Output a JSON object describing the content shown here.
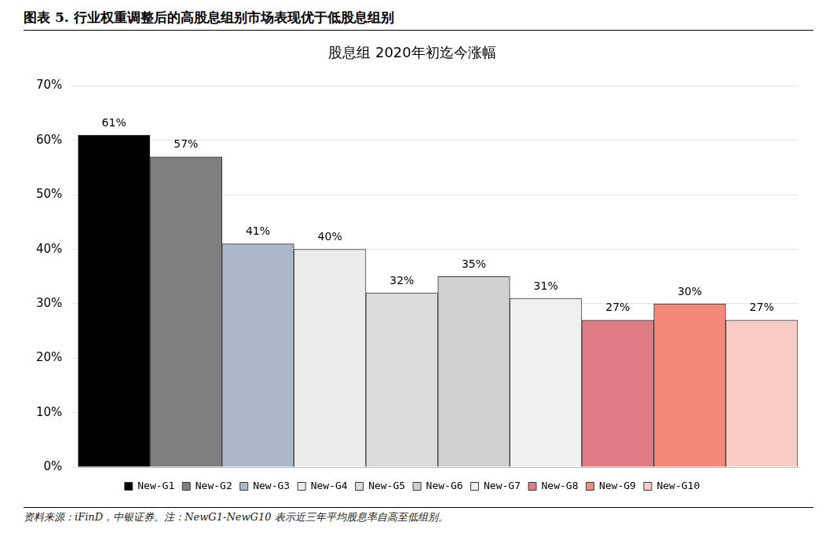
{
  "figure_title": "图表 5. 行业权重调整后的高股息组别市场表现优于低股息组别",
  "source_note": "资料来源：iFinD，中银证券。注：NewG1-NewG10 表示近三年平均股息率自高至低组别。",
  "chart_data": {
    "type": "bar",
    "title": "股息组 2020年初迄今涨幅",
    "categories": [
      "New-G1",
      "New-G2",
      "New-G3",
      "New-G4",
      "New-G5",
      "New-G6",
      "New-G7",
      "New-G8",
      "New-G9",
      "New-G10"
    ],
    "values": [
      61,
      57,
      41,
      40,
      32,
      35,
      31,
      27,
      30,
      27
    ],
    "value_labels": [
      "61%",
      "57%",
      "41%",
      "40%",
      "32%",
      "35%",
      "31%",
      "27%",
      "30%",
      "27%"
    ],
    "colors": [
      "#000000",
      "#7f7f7f",
      "#adb9ca",
      "#ececec",
      "#dcdcdc",
      "#d0d0d0",
      "#f0f0f0",
      "#df7b82",
      "#f2897a",
      "#f8cbc5"
    ],
    "ylim": [
      0,
      70
    ],
    "yticks": [
      {
        "value": 0,
        "label": "0%"
      },
      {
        "value": 10,
        "label": "10%"
      },
      {
        "value": 20,
        "label": "20%"
      },
      {
        "value": 30,
        "label": "30%"
      },
      {
        "value": 40,
        "label": "40%"
      },
      {
        "value": 50,
        "label": "50%"
      },
      {
        "value": 60,
        "label": "60%"
      },
      {
        "value": 70,
        "label": "70%"
      }
    ],
    "grid": true,
    "legend": "bottom",
    "data_labels": true,
    "tick_labels": "y"
  }
}
